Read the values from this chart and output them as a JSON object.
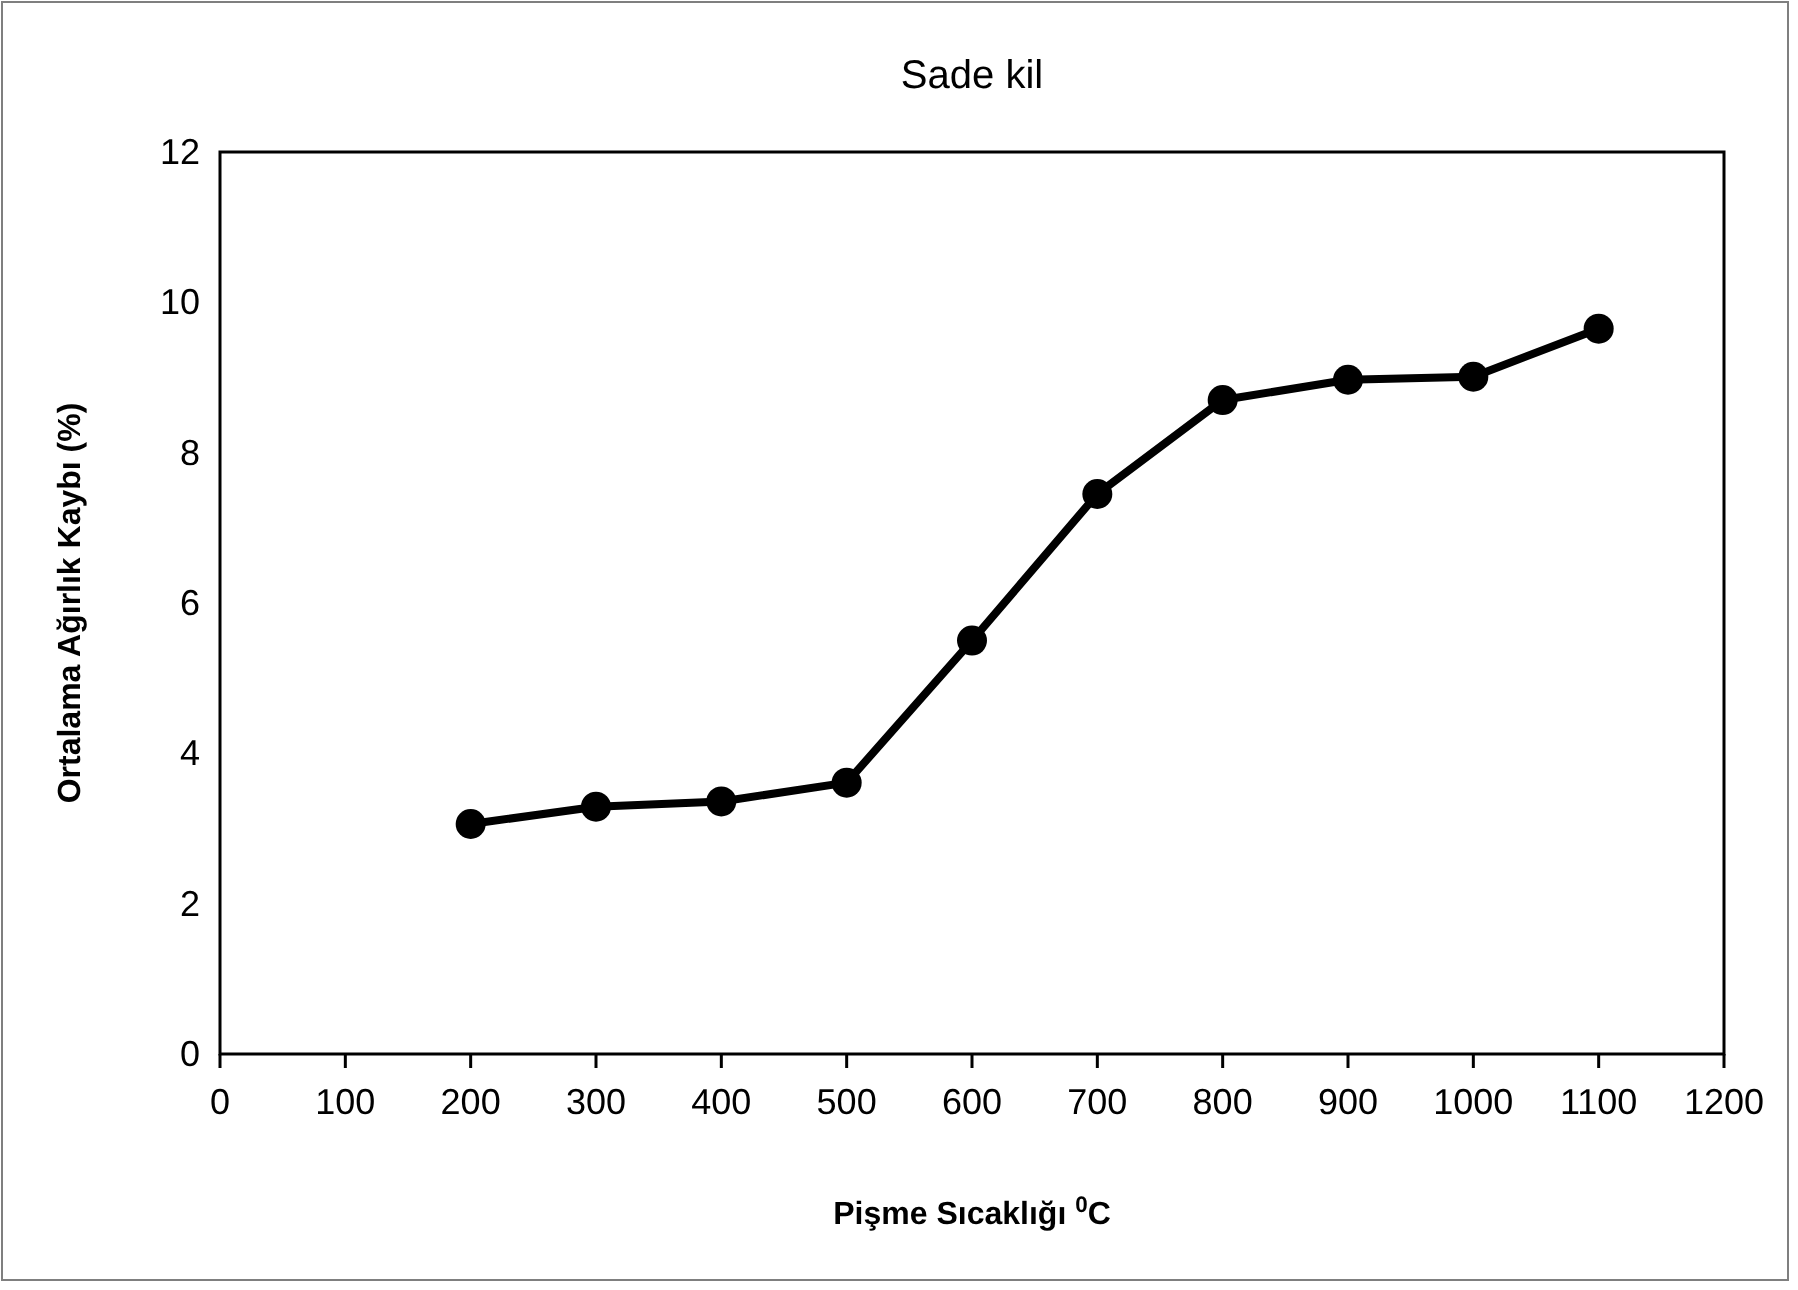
{
  "chart_data": {
    "type": "line",
    "title": "Sade kil",
    "xlabel": "Pişme Sıcaklığı $^{0}$C",
    "ylabel": "Ortalama Ağırlık Kaybı (%)",
    "x": [
      200,
      300,
      400,
      500,
      600,
      700,
      800,
      900,
      1000,
      1100
    ],
    "series": [
      {
        "color": "#000000",
        "values": [
          3.06,
          3.29,
          3.36,
          3.61,
          5.5,
          7.45,
          8.7,
          8.97,
          9.01,
          9.65
        ]
      }
    ],
    "xlim": [
      0,
      1200
    ],
    "xticks": [
      0,
      100,
      200,
      300,
      400,
      500,
      600,
      700,
      800,
      900,
      1000,
      1100,
      1200
    ],
    "ylim": [
      0,
      12
    ],
    "yticks": [
      0,
      2,
      4,
      6,
      8,
      10,
      12
    ],
    "marker": "circle",
    "line_style": "solid"
  }
}
